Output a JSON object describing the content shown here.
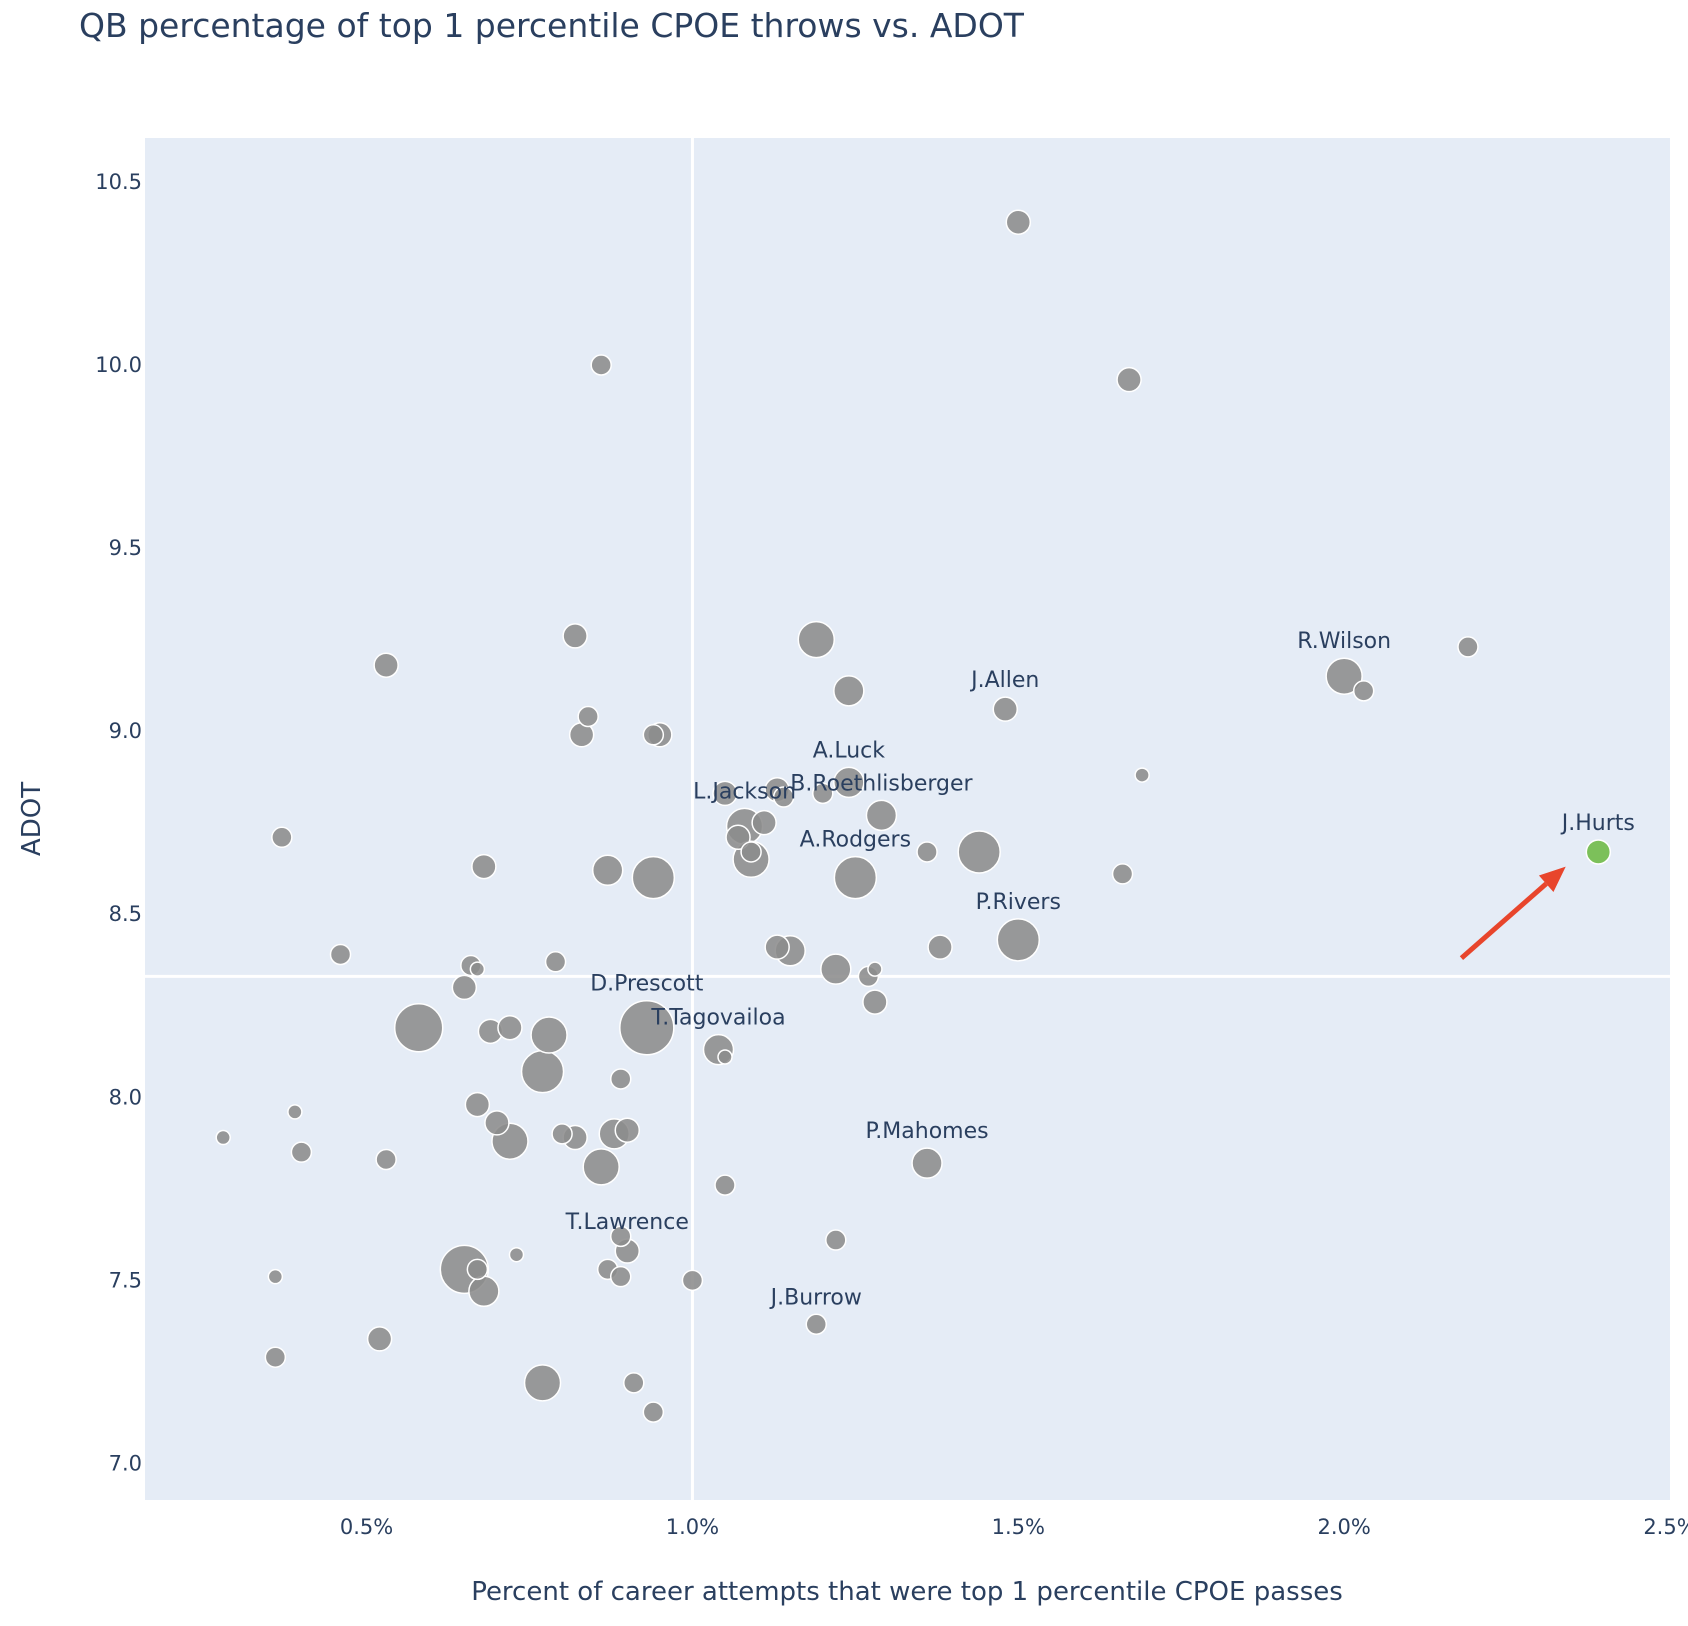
{
  "chart_data": {
    "type": "scatter",
    "title": "QB percentage of top 1 percentile CPOE throws vs. ADOT",
    "xlabel": "Percent of career attempts that were top 1 percentile CPOE passes",
    "ylabel": "ADOT",
    "xlim": [
      0.16,
      2.5
    ],
    "ylim": [
      6.9,
      10.62
    ],
    "x_ticks": [
      0.5,
      1.0,
      1.5,
      2.0,
      2.5
    ],
    "x_tick_labels": [
      "0.5%",
      "1.0%",
      "1.5%",
      "2.0%",
      "2.5%"
    ],
    "y_ticks": [
      7.0,
      7.5,
      8.0,
      8.5,
      9.0,
      9.5,
      10.0,
      10.5
    ],
    "y_tick_labels": [
      "7.0",
      "7.5",
      "8.0",
      "8.5",
      "9.0",
      "9.5",
      "10.0",
      "10.5"
    ],
    "reference_lines": {
      "x": 1.0,
      "y": 8.33
    },
    "grid": false,
    "colors": {
      "plot_bg": "#e5ecf6",
      "point": "#8c8c8c",
      "highlight": "#7cc05a",
      "arrow": "#e8452c",
      "ref_line": "#ffffff"
    },
    "annotation": {
      "type": "arrow",
      "from": [
        2.18,
        8.38
      ],
      "to": [
        2.34,
        8.63
      ]
    },
    "points": [
      {
        "x": 1.5,
        "y": 10.39,
        "size": 2
      },
      {
        "x": 1.67,
        "y": 9.96,
        "size": 2
      },
      {
        "x": 0.86,
        "y": 10.0,
        "size": 1
      },
      {
        "x": 0.82,
        "y": 9.26,
        "size": 2
      },
      {
        "x": 0.53,
        "y": 9.18,
        "size": 2
      },
      {
        "x": 0.84,
        "y": 9.04,
        "size": 1
      },
      {
        "x": 0.83,
        "y": 8.99,
        "size": 2
      },
      {
        "x": 0.94,
        "y": 8.99,
        "size": 1
      },
      {
        "x": 0.95,
        "y": 8.99,
        "size": 2
      },
      {
        "x": 1.19,
        "y": 9.25,
        "size": 4
      },
      {
        "x": 1.24,
        "y": 9.11,
        "size": 3
      },
      {
        "x": 1.48,
        "y": 9.06,
        "size": 2,
        "label": "J.Allen"
      },
      {
        "x": 2.0,
        "y": 9.15,
        "size": 4,
        "label": "R.Wilson"
      },
      {
        "x": 2.03,
        "y": 9.11,
        "size": 1
      },
      {
        "x": 2.19,
        "y": 9.23,
        "size": 1
      },
      {
        "x": 1.69,
        "y": 8.88,
        "size": 0
      },
      {
        "x": 1.05,
        "y": 8.83,
        "size": 2
      },
      {
        "x": 1.13,
        "y": 8.84,
        "size": 2
      },
      {
        "x": 1.14,
        "y": 8.82,
        "size": 1
      },
      {
        "x": 1.2,
        "y": 8.83,
        "size": 1
      },
      {
        "x": 1.24,
        "y": 8.86,
        "size": 3,
        "label": "A.Luck"
      },
      {
        "x": 1.08,
        "y": 8.74,
        "size": 4,
        "label": "L.Jackson"
      },
      {
        "x": 1.07,
        "y": 8.71,
        "size": 2
      },
      {
        "x": 1.11,
        "y": 8.75,
        "size": 2
      },
      {
        "x": 1.09,
        "y": 8.67,
        "size": 1
      },
      {
        "x": 1.09,
        "y": 8.65,
        "size": 4
      },
      {
        "x": 1.29,
        "y": 8.77,
        "size": 3,
        "label": "B.Roethlisberger"
      },
      {
        "x": 1.25,
        "y": 8.6,
        "size": 5,
        "label": "A.Rodgers"
      },
      {
        "x": 1.36,
        "y": 8.67,
        "size": 1
      },
      {
        "x": 1.44,
        "y": 8.67,
        "size": 5
      },
      {
        "x": 1.66,
        "y": 8.61,
        "size": 1
      },
      {
        "x": 2.39,
        "y": 8.67,
        "size": 2,
        "label": "J.Hurts",
        "highlight": true
      },
      {
        "x": 0.37,
        "y": 8.71,
        "size": 1
      },
      {
        "x": 0.68,
        "y": 8.63,
        "size": 2
      },
      {
        "x": 0.87,
        "y": 8.62,
        "size": 3
      },
      {
        "x": 0.94,
        "y": 8.6,
        "size": 5
      },
      {
        "x": 1.5,
        "y": 8.43,
        "size": 5,
        "label": "P.Rivers"
      },
      {
        "x": 1.38,
        "y": 8.41,
        "size": 2
      },
      {
        "x": 1.13,
        "y": 8.41,
        "size": 2
      },
      {
        "x": 1.15,
        "y": 8.4,
        "size": 3
      },
      {
        "x": 1.22,
        "y": 8.35,
        "size": 3
      },
      {
        "x": 1.27,
        "y": 8.33,
        "size": 1
      },
      {
        "x": 1.28,
        "y": 8.35,
        "size": 0
      },
      {
        "x": 1.28,
        "y": 8.26,
        "size": 2
      },
      {
        "x": 0.46,
        "y": 8.39,
        "size": 1
      },
      {
        "x": 0.66,
        "y": 8.36,
        "size": 1
      },
      {
        "x": 0.67,
        "y": 8.35,
        "size": 0
      },
      {
        "x": 0.79,
        "y": 8.37,
        "size": 1
      },
      {
        "x": 0.65,
        "y": 8.3,
        "size": 2
      },
      {
        "x": 0.58,
        "y": 8.19,
        "size": 6
      },
      {
        "x": 0.69,
        "y": 8.18,
        "size": 2
      },
      {
        "x": 0.72,
        "y": 8.19,
        "size": 2
      },
      {
        "x": 0.78,
        "y": 8.17,
        "size": 4
      },
      {
        "x": 0.93,
        "y": 8.19,
        "size": 7,
        "label": "D.Prescott"
      },
      {
        "x": 1.04,
        "y": 8.13,
        "size": 3,
        "label": "T.Tagovailoa"
      },
      {
        "x": 1.05,
        "y": 8.11,
        "size": 0
      },
      {
        "x": 0.77,
        "y": 8.07,
        "size": 5
      },
      {
        "x": 0.89,
        "y": 8.05,
        "size": 1
      },
      {
        "x": 0.67,
        "y": 7.98,
        "size": 2
      },
      {
        "x": 0.39,
        "y": 7.96,
        "size": 0
      },
      {
        "x": 0.7,
        "y": 7.93,
        "size": 2
      },
      {
        "x": 0.72,
        "y": 7.88,
        "size": 4
      },
      {
        "x": 0.8,
        "y": 7.9,
        "size": 1
      },
      {
        "x": 0.82,
        "y": 7.89,
        "size": 2
      },
      {
        "x": 0.88,
        "y": 7.9,
        "size": 3
      },
      {
        "x": 0.9,
        "y": 7.91,
        "size": 2
      },
      {
        "x": 0.28,
        "y": 7.89,
        "size": 0
      },
      {
        "x": 0.4,
        "y": 7.85,
        "size": 1
      },
      {
        "x": 0.53,
        "y": 7.83,
        "size": 1
      },
      {
        "x": 0.86,
        "y": 7.81,
        "size": 4
      },
      {
        "x": 1.36,
        "y": 7.82,
        "size": 3,
        "label": "P.Mahomes"
      },
      {
        "x": 1.05,
        "y": 7.76,
        "size": 1
      },
      {
        "x": 0.89,
        "y": 7.62,
        "size": 1
      },
      {
        "x": 0.9,
        "y": 7.58,
        "size": 2,
        "label": "T.Lawrence"
      },
      {
        "x": 0.73,
        "y": 7.57,
        "size": 0
      },
      {
        "x": 1.22,
        "y": 7.61,
        "size": 1
      },
      {
        "x": 0.65,
        "y": 7.53,
        "size": 6
      },
      {
        "x": 0.67,
        "y": 7.53,
        "size": 1
      },
      {
        "x": 0.68,
        "y": 7.47,
        "size": 3
      },
      {
        "x": 0.87,
        "y": 7.53,
        "size": 1
      },
      {
        "x": 0.89,
        "y": 7.51,
        "size": 1
      },
      {
        "x": 0.36,
        "y": 7.51,
        "size": 0
      },
      {
        "x": 1.0,
        "y": 7.5,
        "size": 1
      },
      {
        "x": 1.19,
        "y": 7.38,
        "size": 1,
        "label": "J.Burrow"
      },
      {
        "x": 0.52,
        "y": 7.34,
        "size": 2
      },
      {
        "x": 0.36,
        "y": 7.29,
        "size": 1
      },
      {
        "x": 0.77,
        "y": 7.22,
        "size": 4
      },
      {
        "x": 0.91,
        "y": 7.22,
        "size": 1
      },
      {
        "x": 0.94,
        "y": 7.14,
        "size": 1
      }
    ]
  }
}
